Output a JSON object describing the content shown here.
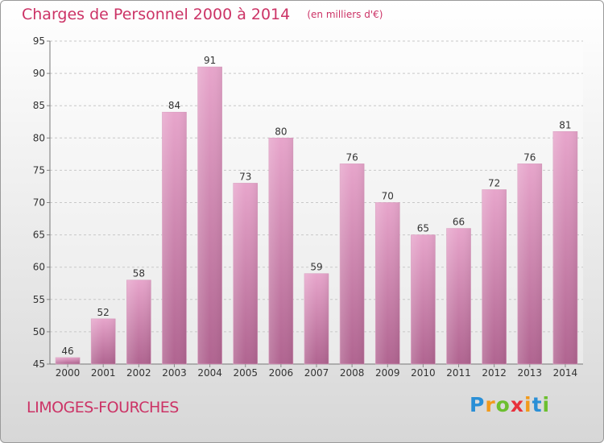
{
  "chart_data": {
    "type": "bar",
    "title": "Charges de Personnel 2000 à 2014",
    "unit_note": "(en milliers d'€)",
    "categories": [
      "2000",
      "2001",
      "2002",
      "2003",
      "2004",
      "2005",
      "2006",
      "2007",
      "2008",
      "2009",
      "2010",
      "2011",
      "2012",
      "2013",
      "2014"
    ],
    "values": [
      46,
      52,
      58,
      84,
      91,
      73,
      80,
      59,
      76,
      70,
      65,
      66,
      72,
      76,
      81
    ],
    "ylim": [
      45,
      95
    ],
    "yticks": [
      45,
      50,
      55,
      60,
      65,
      70,
      75,
      80,
      85,
      90,
      95
    ],
    "grid": true,
    "bar_color": "#c9749f"
  },
  "commune_name": "LIMOGES-FOURCHES",
  "logo": {
    "letters": [
      "P",
      "r",
      "o",
      "x",
      "i",
      "t",
      "i"
    ],
    "colors": [
      "#2a8fd6",
      "#f29a1b",
      "#6cbf2f",
      "#e8303b",
      "#f29a1b",
      "#2a8fd6",
      "#6cbf2f"
    ]
  }
}
